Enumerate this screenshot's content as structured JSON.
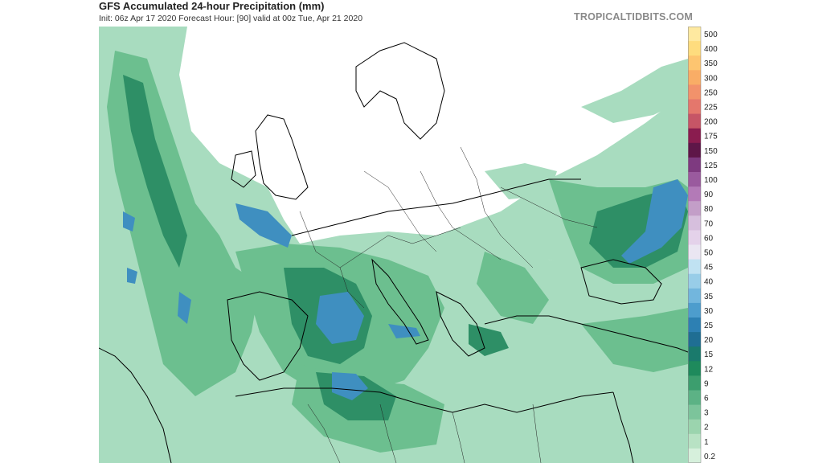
{
  "header": {
    "title": "GFS Accumulated 24-hour Precipitation (mm)",
    "subtitle": "Init: 06z Apr 17 2020   Forecast Hour: [90]   valid at 00z Tue, Apr 21 2020",
    "brand": "TROPICALTIDBITS.COM"
  },
  "map": {
    "region": "Europe, North Africa and Middle East",
    "land_color": "#ffffff",
    "border_color": "#000000"
  },
  "colorbar": {
    "labels": [
      "500",
      "400",
      "350",
      "300",
      "250",
      "225",
      "200",
      "175",
      "150",
      "125",
      "100",
      "90",
      "80",
      "70",
      "60",
      "50",
      "45",
      "40",
      "35",
      "30",
      "25",
      "20",
      "15",
      "12",
      "9",
      "6",
      "3",
      "2",
      "1",
      "0.2"
    ],
    "colors": [
      "#fee9a0",
      "#fedc7e",
      "#fdc570",
      "#f9ad66",
      "#f2926b",
      "#e4776c",
      "#c65566",
      "#8a1c4f",
      "#5e1648",
      "#7e3a80",
      "#9a5a9e",
      "#b37ab7",
      "#c39ec8",
      "#d6bfdd",
      "#e4d2ea",
      "#eae6f2",
      "#c0e2f2",
      "#98cde8",
      "#72b6dd",
      "#4d9dcd",
      "#2d80b3",
      "#1f6e93",
      "#1a7a6c",
      "#1e8a5c",
      "#3c9e6e",
      "#5cb285",
      "#7cc49b",
      "#9bd4ae",
      "#b8e2c4",
      "#d6f0dc"
    ]
  }
}
